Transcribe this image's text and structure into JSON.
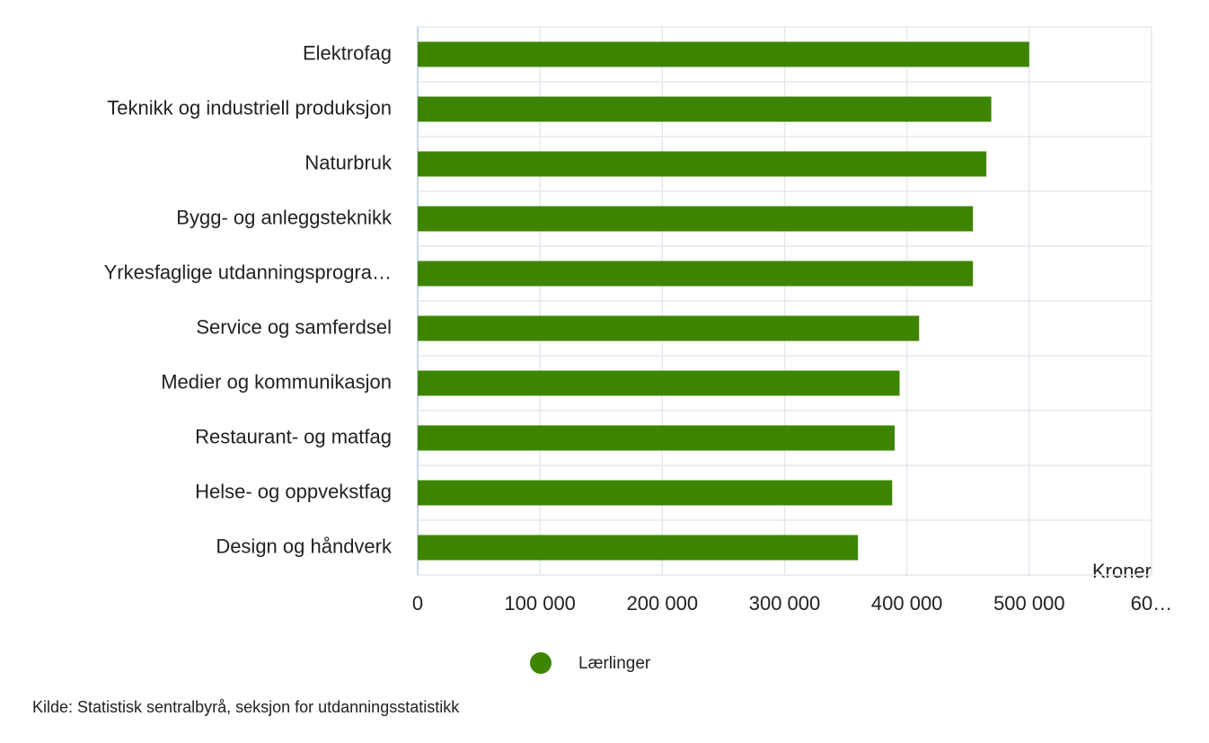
{
  "chart_data": {
    "type": "bar",
    "orientation": "horizontal",
    "categories": [
      "Elektrofag",
      "Teknikk og industriell produksjon",
      "Naturbruk",
      "Bygg- og anleggsteknikk",
      "Yrkesfaglige utdanningsprogra…",
      "Service og samferdsel",
      "Medier og kommunikasjon",
      "Restaurant- og matfag",
      "Helse- og oppvekstfag",
      "Design og håndverk"
    ],
    "series": [
      {
        "name": "Lærlinger",
        "color": "#3d8500",
        "values": [
          500000,
          469000,
          465000,
          454000,
          454000,
          410000,
          394000,
          390000,
          388000,
          360000
        ]
      }
    ],
    "xlim": [
      0,
      600000
    ],
    "xticks": [
      0,
      {
        "value": 100000,
        "label": "100 000"
      },
      {
        "value": 200000,
        "label": "200 000"
      },
      {
        "value": 300000,
        "label": "300 000"
      },
      {
        "value": 400000,
        "label": "400 000"
      },
      {
        "value": 500000,
        "label": "500 000"
      },
      {
        "value": 600000,
        "label": "60…"
      }
    ],
    "x_axis_label": "Kroner",
    "grid": true,
    "legend": "bottom",
    "source": "Kilde: Statistisk sentralbyrå, seksjon for utdanningsstatistikk"
  }
}
